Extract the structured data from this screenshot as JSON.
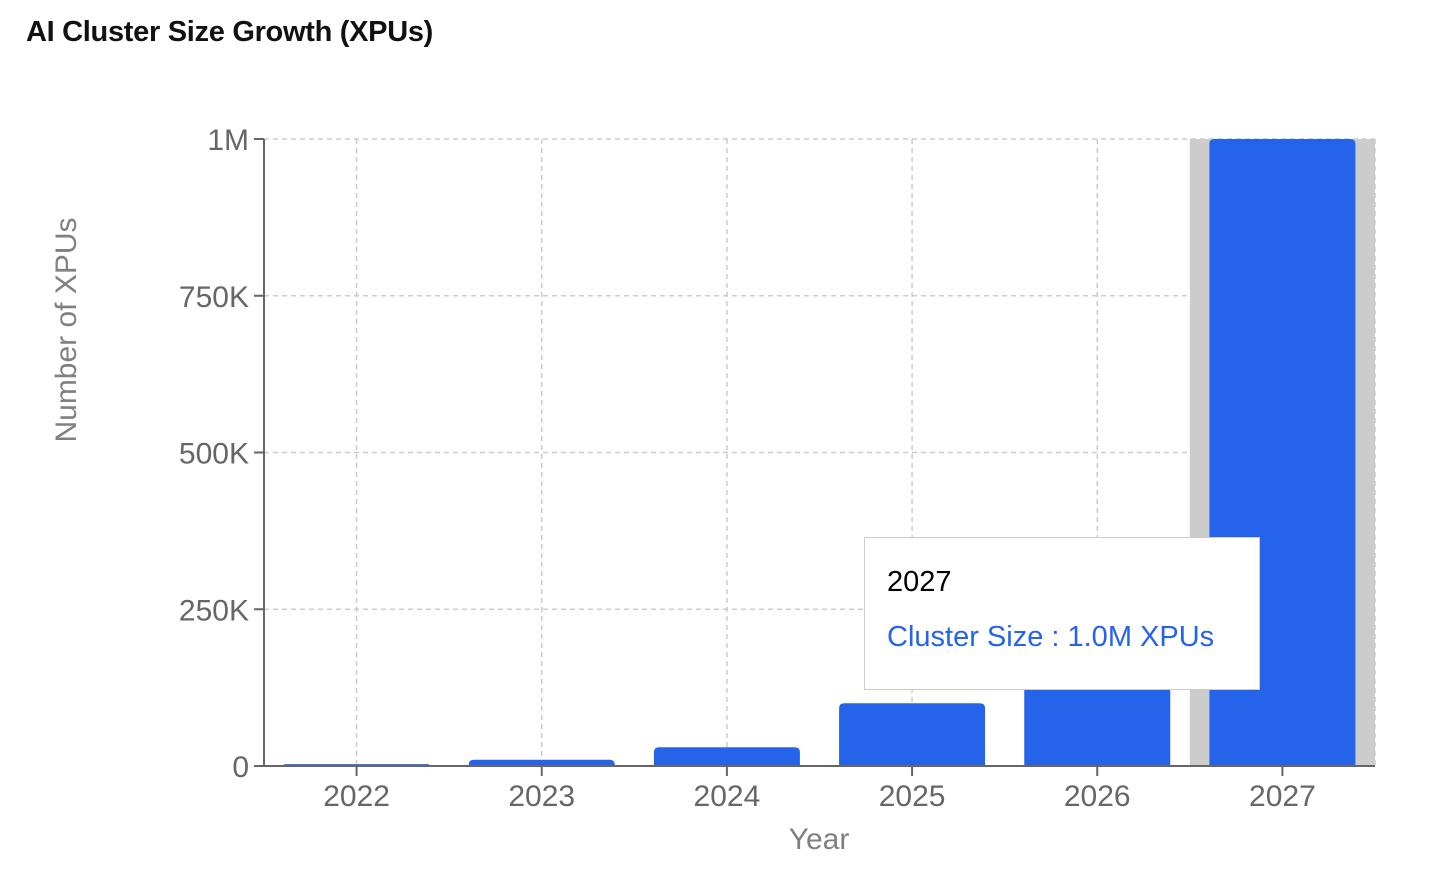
{
  "title": "AI Cluster Size Growth (XPUs)",
  "colors": {
    "bar": "#2563EB",
    "cursor": "#CCCCCC",
    "grid": "#CCCCCC",
    "axis": "#666666"
  },
  "tooltip": {
    "label": "2027",
    "series_name": "Cluster Size",
    "separator": " : ",
    "value_text": "1.0M XPUs",
    "active_category": "2027"
  },
  "chart_data": {
    "type": "bar",
    "title": "AI Cluster Size Growth (XPUs)",
    "xlabel": "Year",
    "ylabel": "Number of XPUs",
    "categories": [
      "2022",
      "2023",
      "2024",
      "2025",
      "2026",
      "2027"
    ],
    "series": [
      {
        "name": "Cluster Size",
        "values": [
          3000,
          10000,
          30000,
          100000,
          300000,
          1000000
        ]
      }
    ],
    "ylim": [
      0,
      1000000
    ],
    "y_ticks": [
      0,
      250000,
      500000,
      750000,
      1000000
    ],
    "y_tick_labels": [
      "0",
      "250K",
      "500K",
      "750K",
      "1M"
    ],
    "grid": true,
    "grid_style": "dashed",
    "legend": "none"
  }
}
